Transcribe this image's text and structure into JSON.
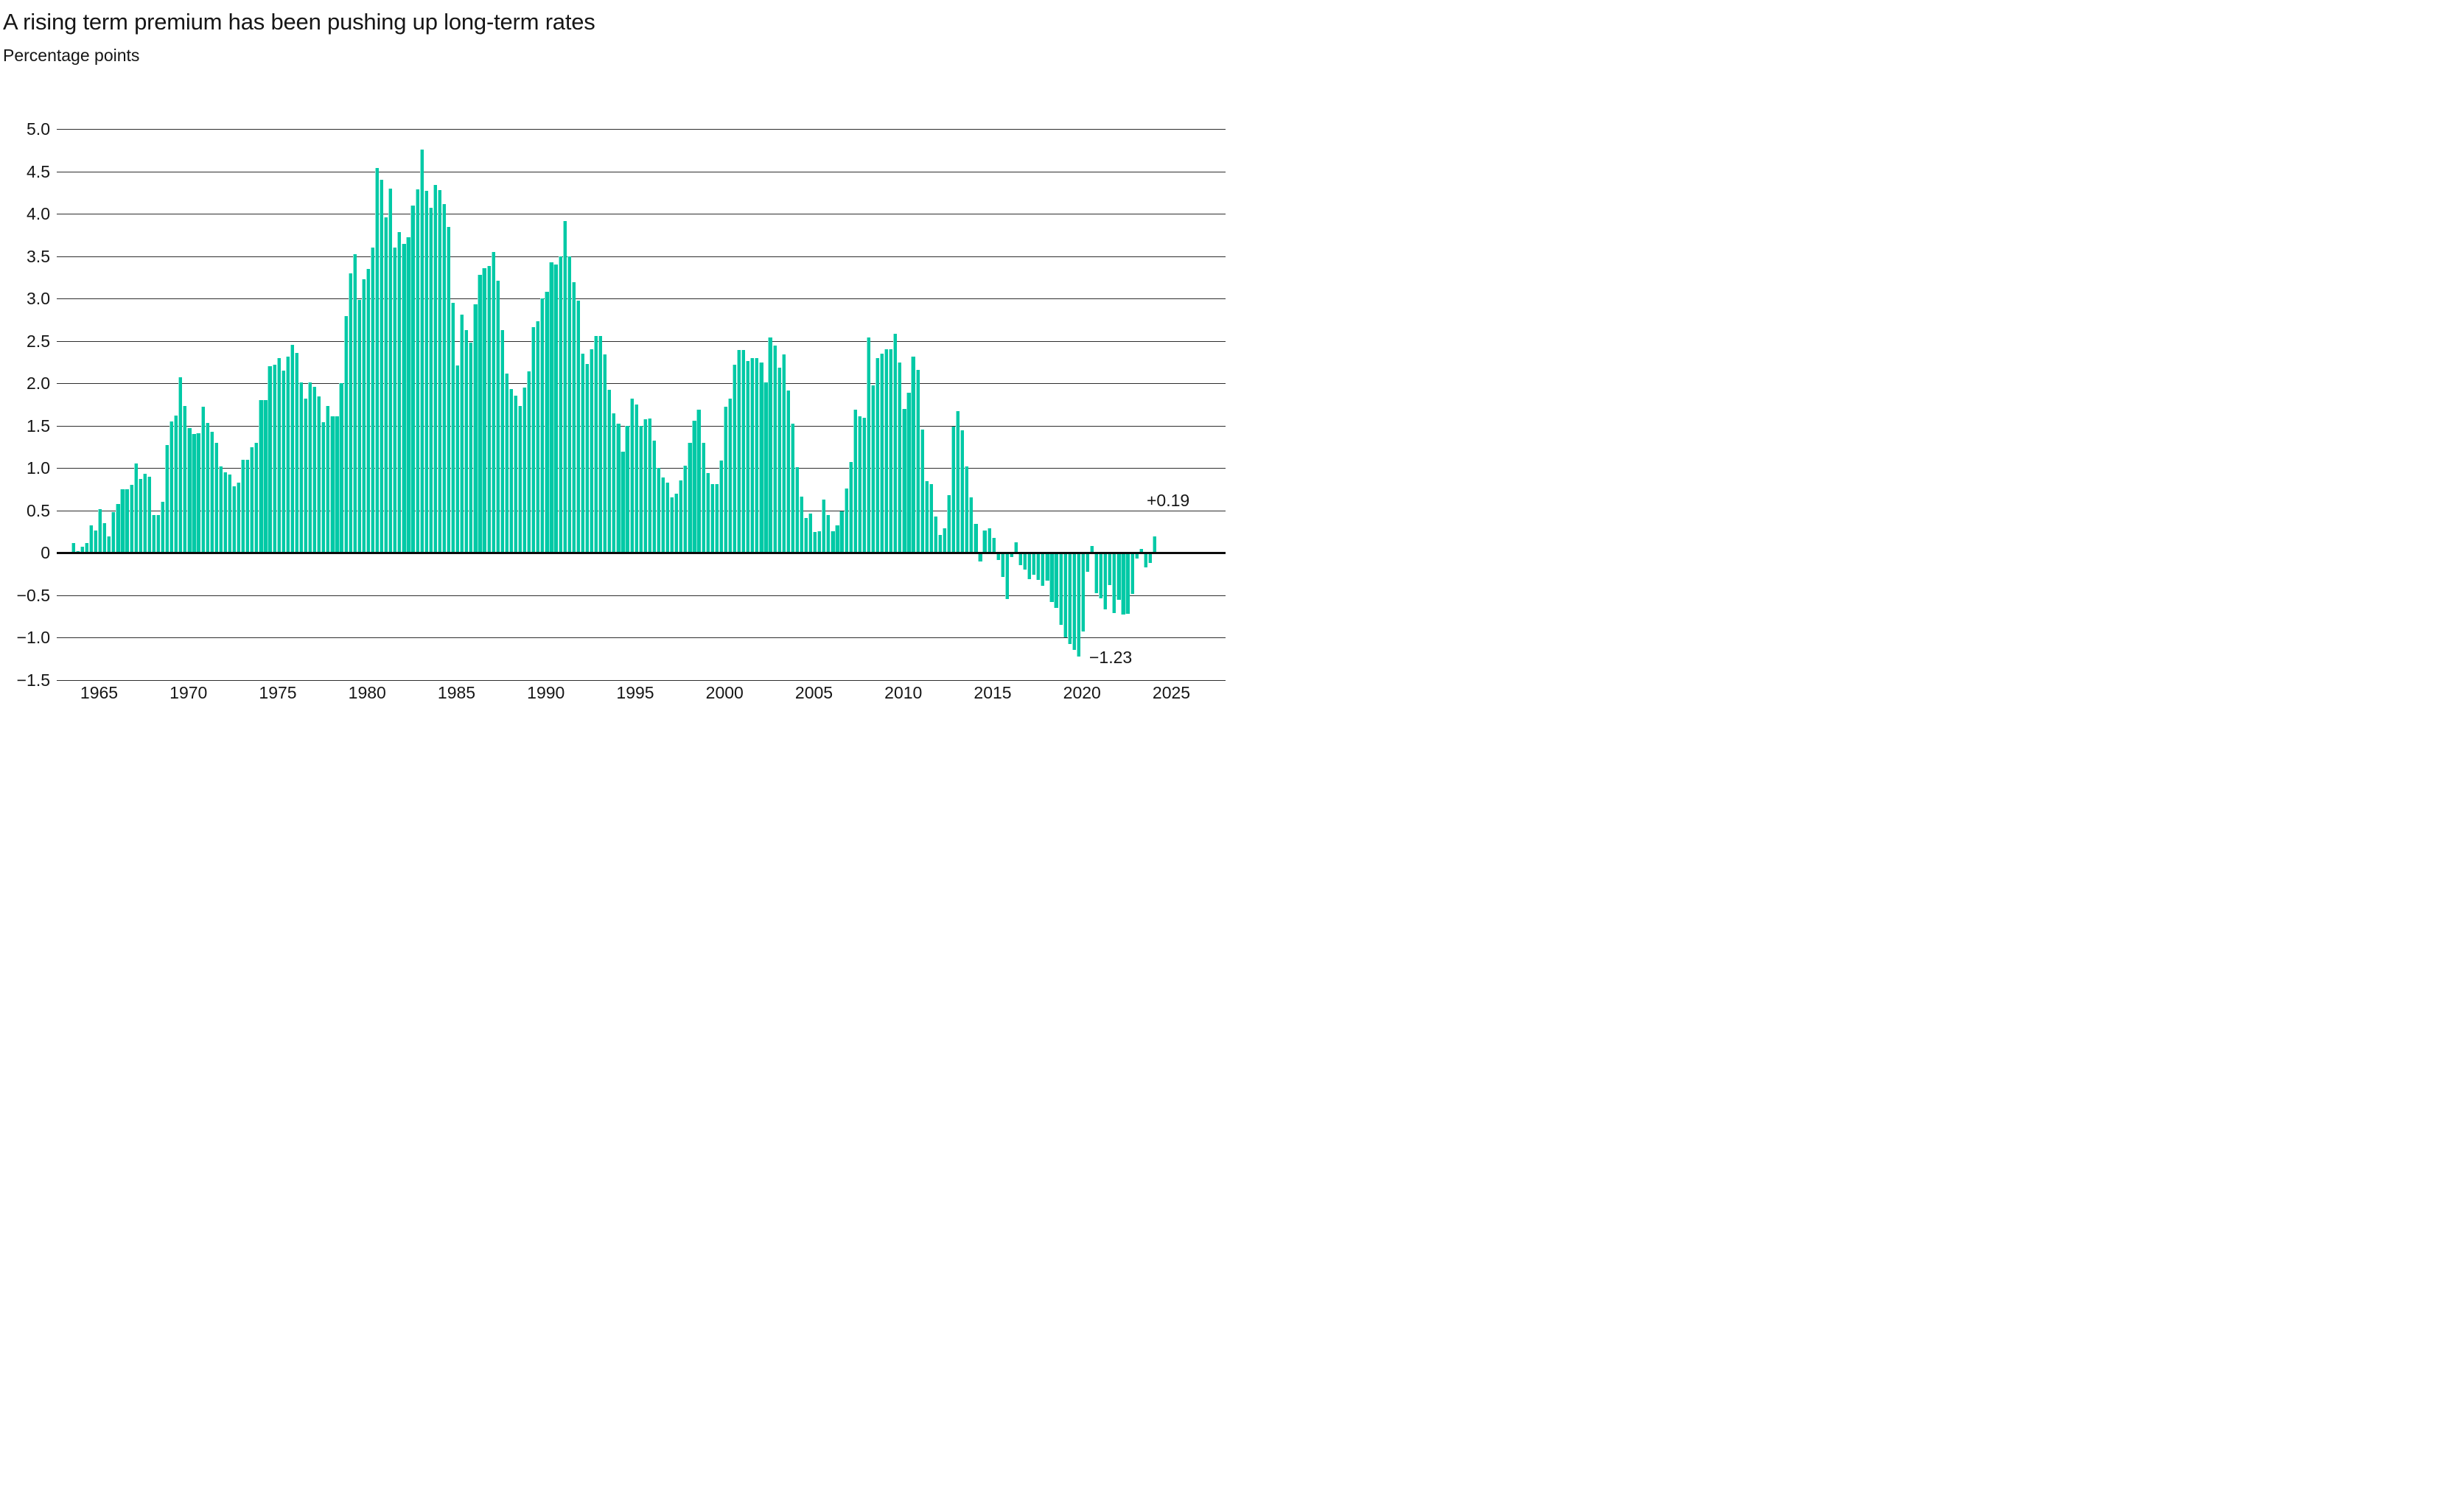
{
  "header": {
    "title": "A rising term premium has been pushing up long-term rates",
    "subtitle": "Percentage points"
  },
  "chart_data": {
    "type": "bar",
    "title": "A rising term premium has been pushing up long-term rates",
    "ylabel": "Percentage points",
    "xlabel": "",
    "frequency": "quarterly",
    "x_start": "1963-Q3",
    "x_end": "2024-Q1",
    "ylim": [
      -1.5,
      5.0
    ],
    "grid": true,
    "legend_position": "none",
    "bar_color": "#00c9a6",
    "bar_edge_color": "#93e9d7",
    "grid_color": "#2e2e2e",
    "zero_line_color": "#0b0b0b",
    "text_color": "#161616",
    "y_ticks": [
      "5.0",
      "4.5",
      "4.0",
      "3.5",
      "3.0",
      "2.5",
      "2.0",
      "1.5",
      "1.0",
      "0.5",
      "0",
      "−0.5",
      "−1.0",
      "−1.5"
    ],
    "y_tick_values": [
      5.0,
      4.5,
      4.0,
      3.5,
      3.0,
      2.5,
      2.0,
      1.5,
      1.0,
      0.5,
      0,
      -0.5,
      -1.0,
      -1.5
    ],
    "x_tick_years": [
      1965,
      1970,
      1975,
      1980,
      1985,
      1990,
      1995,
      2000,
      2005,
      2010,
      2015,
      2020,
      2025
    ],
    "x_tick_labels": [
      "1965",
      "1970",
      "1975",
      "1980",
      "1985",
      "1990",
      "1995",
      "2000",
      "2005",
      "2010",
      "2015",
      "2020",
      "2025"
    ],
    "annotations": [
      {
        "text": "+0.19",
        "anchor": "last_bar"
      },
      {
        "text": "−1.23",
        "anchor": "min_bar"
      }
    ],
    "values": [
      0.11,
      0.02,
      0.07,
      0.11,
      0.32,
      0.26,
      0.51,
      0.35,
      0.19,
      0.48,
      0.57,
      0.75,
      0.75,
      0.8,
      1.05,
      0.87,
      0.93,
      0.9,
      0.44,
      0.44,
      0.6,
      1.27,
      1.55,
      1.62,
      2.07,
      1.73,
      1.47,
      1.4,
      1.41,
      1.72,
      1.53,
      1.43,
      1.3,
      1.02,
      0.95,
      0.92,
      0.78,
      0.83,
      1.1,
      1.1,
      1.24,
      1.3,
      1.8,
      1.8,
      2.2,
      2.22,
      2.3,
      2.15,
      2.31,
      2.45,
      2.36,
      2.01,
      1.82,
      2.01,
      1.96,
      1.84,
      1.54,
      1.73,
      1.61,
      1.61,
      2.0,
      2.79,
      3.3,
      3.52,
      2.98,
      3.23,
      3.35,
      3.6,
      4.54,
      4.4,
      3.96,
      4.3,
      3.6,
      3.78,
      3.64,
      3.72,
      4.1,
      4.29,
      4.76,
      4.27,
      4.07,
      4.34,
      4.28,
      4.11,
      3.84,
      2.95,
      2.21,
      2.81,
      2.63,
      2.48,
      2.93,
      3.28,
      3.36,
      3.38,
      3.55,
      3.21,
      2.63,
      2.11,
      1.93,
      1.85,
      1.73,
      1.95,
      2.14,
      2.66,
      2.73,
      3.0,
      3.08,
      3.43,
      3.4,
      3.5,
      3.91,
      3.5,
      3.19,
      2.97,
      2.35,
      2.23,
      2.4,
      2.56,
      2.56,
      2.34,
      1.92,
      1.64,
      1.52,
      1.19,
      1.5,
      1.82,
      1.75,
      1.5,
      1.57,
      1.58,
      1.32,
      1.0,
      0.89,
      0.83,
      0.65,
      0.7,
      0.85,
      1.03,
      1.3,
      1.56,
      1.69,
      1.3,
      0.94,
      0.81,
      0.81,
      1.09,
      1.72,
      1.82,
      2.22,
      2.39,
      2.39,
      2.26,
      2.3,
      2.3,
      2.24,
      2.01,
      2.54,
      2.44,
      2.18,
      2.34,
      1.91,
      1.52,
      1.01,
      0.66,
      0.41,
      0.46,
      0.24,
      0.25,
      0.63,
      0.44,
      0.25,
      0.32,
      0.49,
      0.76,
      1.07,
      1.69,
      1.61,
      1.59,
      2.54,
      1.97,
      2.3,
      2.35,
      2.4,
      2.4,
      2.58,
      2.24,
      1.7,
      1.89,
      2.31,
      2.16,
      1.45,
      0.84,
      0.81,
      0.43,
      0.21,
      0.29,
      0.68,
      1.49,
      1.67,
      1.44,
      1.02,
      0.65,
      0.34,
      -0.1,
      0.26,
      0.29,
      0.17,
      -0.09,
      -0.29,
      -0.55,
      -0.05,
      0.12,
      -0.15,
      -0.2,
      -0.31,
      -0.26,
      -0.32,
      -0.39,
      -0.33,
      -0.58,
      -0.65,
      -0.85,
      -1.0,
      -1.08,
      -1.15,
      -1.23,
      -0.93,
      -0.23,
      0.08,
      -0.48,
      -0.54,
      -0.67,
      -0.38,
      -0.71,
      -0.56,
      -0.73,
      -0.72,
      -0.49,
      -0.07,
      0.04,
      -0.17,
      -0.12,
      0.19
    ]
  }
}
